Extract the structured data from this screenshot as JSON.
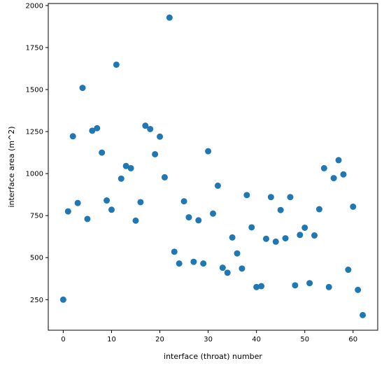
{
  "chart_data": {
    "type": "scatter",
    "title": "",
    "xlabel": "interface (throat) number",
    "ylabel": "interface area (m^2)",
    "xlim": [
      -3.1,
      65.1
    ],
    "ylim": [
      68,
      2012
    ],
    "xticks": [
      0,
      10,
      20,
      30,
      40,
      50,
      60
    ],
    "yticks": [
      250,
      500,
      750,
      1000,
      1250,
      1500,
      1750,
      2000
    ],
    "grid": false,
    "legend": "none",
    "marker_color": "#1f77b4",
    "series": [
      {
        "x": [
          0,
          1,
          2,
          3,
          4,
          5,
          6,
          7,
          8,
          9,
          10,
          11,
          12,
          13,
          14,
          15,
          16,
          17,
          18,
          19,
          20,
          21,
          22,
          23,
          24,
          25,
          26,
          27,
          28,
          29,
          30,
          31,
          32,
          33,
          34,
          35,
          36,
          37,
          38,
          39,
          40,
          41,
          42,
          43,
          44,
          45,
          46,
          47,
          48,
          49,
          50,
          51,
          52,
          53,
          54,
          55,
          56,
          57,
          58,
          59,
          60,
          61,
          62
        ],
        "y": [
          250,
          775,
          1222,
          825,
          1510,
          730,
          1255,
          1270,
          1125,
          840,
          785,
          1648,
          970,
          1045,
          1032,
          720,
          830,
          1285,
          1265,
          1115,
          1220,
          978,
          1928,
          535,
          465,
          835,
          740,
          475,
          722,
          465,
          1133,
          762,
          928,
          440,
          410,
          620,
          525,
          435,
          872,
          680,
          325,
          330,
          612,
          860,
          595,
          783,
          615,
          860,
          335,
          635,
          678,
          348,
          632,
          788,
          1032,
          325,
          973,
          1080,
          995,
          428,
          803,
          308,
          158
        ]
      }
    ]
  }
}
